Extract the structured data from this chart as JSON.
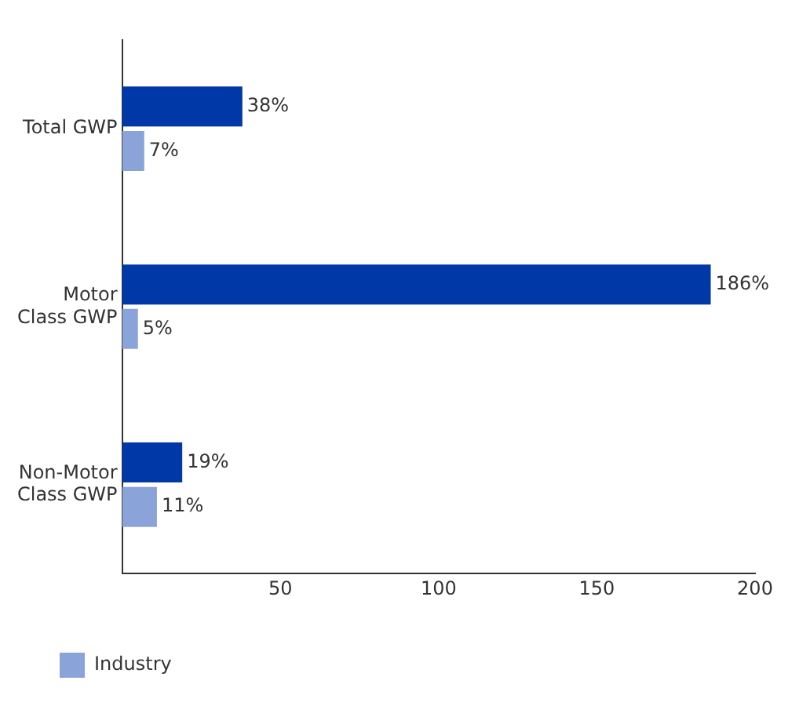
{
  "chart_data": {
    "type": "bar",
    "orientation": "horizontal",
    "categories": [
      "Total GWP",
      "Motor Class GWP",
      "Non-Motor Class GWP"
    ],
    "series": [
      {
        "color": "#0038a8",
        "values": [
          38,
          186,
          19
        ],
        "value_labels": [
          "38%",
          "186%",
          "19%"
        ]
      },
      {
        "name": "Industry",
        "color": "#8aa4d9",
        "values": [
          7,
          5,
          11
        ],
        "value_labels": [
          "7%",
          "5%",
          "11%"
        ]
      }
    ],
    "xlim": [
      0,
      200
    ],
    "xticks": [
      50,
      100,
      150,
      200
    ],
    "grid": false,
    "legend": "bottom left"
  }
}
